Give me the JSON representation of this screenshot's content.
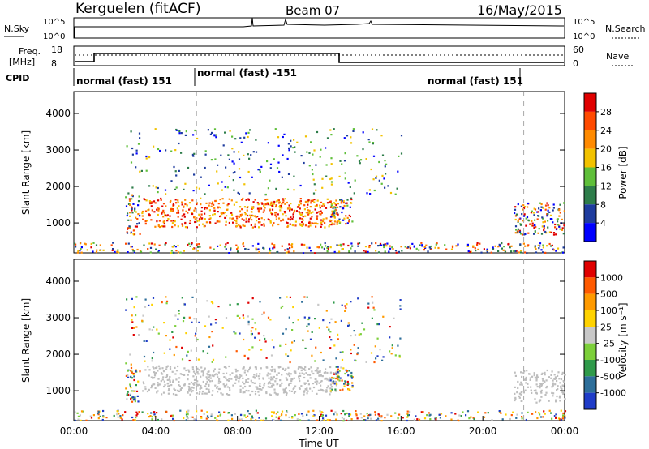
{
  "header": {
    "station": "Kerguelen (fitACF)",
    "beam": "Beam 07",
    "date": "16/May/2015"
  },
  "summary_panels": {
    "nsky": {
      "label": "N.Sky",
      "right_label": "N.Search",
      "tick_labels": [
        "10^5",
        "10^0"
      ]
    },
    "freq": {
      "label_line1": "Freq.",
      "label_line2": "[MHz]",
      "tick_labels": [
        "18",
        "8"
      ],
      "right_label": "Nave",
      "right_tick_labels": [
        "60",
        "0"
      ]
    },
    "cpid": {
      "label": "CPID",
      "segments": [
        {
          "text": "normal (fast) 151"
        },
        {
          "text": "normal (fast) -151"
        },
        {
          "text": "normal (fast) 151"
        }
      ]
    }
  },
  "colors": {
    "power_scale": [
      "#0000ff",
      "#1e3c9e",
      "#2e7d4a",
      "#5fbf3a",
      "#f2c200",
      "#ff8a00",
      "#ff4a00",
      "#e00000"
    ],
    "velocity_scale": [
      "#1f3cc8",
      "#2d6e9a",
      "#2f9a4a",
      "#7ccf3a",
      "#c8c8c8",
      "#ffd200",
      "#ff9a00",
      "#ff5a00",
      "#e00000"
    ],
    "range_gate_gray": "#bdbdbd"
  },
  "chart_data": [
    {
      "type": "heatmap",
      "title": "",
      "xlabel": "",
      "ylabel": "Slant Range [km]",
      "y_ticks": [
        "1000",
        "2000",
        "3000",
        "4000"
      ],
      "ylim": [
        180,
        4600
      ],
      "x_range_hours": [
        0,
        24
      ],
      "colorbar": {
        "label": "Power [dB]",
        "tick_labels": [
          "4",
          "8",
          "12",
          "16",
          "20",
          "24",
          "28"
        ]
      }
    },
    {
      "type": "heatmap",
      "title": "",
      "xlabel": "Time UT",
      "ylabel": "Slant Range [km]",
      "x_ticks": [
        "00:00",
        "04:00",
        "08:00",
        "12:00",
        "16:00",
        "20:00",
        "00:00"
      ],
      "y_ticks": [
        "1000",
        "2000",
        "3000",
        "4000"
      ],
      "ylim": [
        180,
        4600
      ],
      "x_range_hours": [
        0,
        24
      ],
      "colorbar": {
        "label": "Velocity [m s⁻¹]",
        "tick_labels": [
          "1000",
          "500",
          "100",
          "25",
          "-25",
          "-100",
          "-500",
          "-1000"
        ]
      }
    }
  ]
}
